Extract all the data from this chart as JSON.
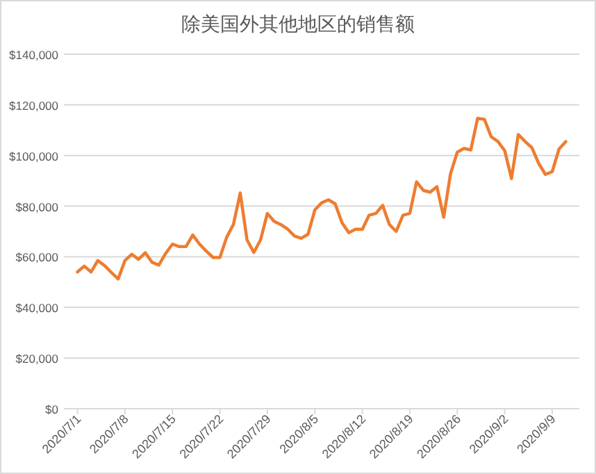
{
  "chart_data": {
    "type": "line",
    "title": "除美国外其他地区的销售额",
    "x": [
      "2020-07-01",
      "2020-07-02",
      "2020-07-03",
      "2020-07-04",
      "2020-07-05",
      "2020-07-06",
      "2020-07-07",
      "2020-07-08",
      "2020-07-09",
      "2020-07-10",
      "2020-07-11",
      "2020-07-12",
      "2020-07-13",
      "2020-07-14",
      "2020-07-15",
      "2020-07-16",
      "2020-07-17",
      "2020-07-18",
      "2020-07-19",
      "2020-07-20",
      "2020-07-21",
      "2020-07-22",
      "2020-07-23",
      "2020-07-24",
      "2020-07-25",
      "2020-07-26",
      "2020-07-27",
      "2020-07-28",
      "2020-07-29",
      "2020-07-30",
      "2020-07-31",
      "2020-08-01",
      "2020-08-02",
      "2020-08-03",
      "2020-08-04",
      "2020-08-05",
      "2020-08-06",
      "2020-08-07",
      "2020-08-08",
      "2020-08-09",
      "2020-08-10",
      "2020-08-11",
      "2020-08-12",
      "2020-08-13",
      "2020-08-14",
      "2020-08-15",
      "2020-08-16",
      "2020-08-17",
      "2020-08-18",
      "2020-08-19",
      "2020-08-20",
      "2020-08-21",
      "2020-08-22",
      "2020-08-23",
      "2020-08-24",
      "2020-08-25",
      "2020-08-26",
      "2020-08-27",
      "2020-08-28",
      "2020-08-29",
      "2020-08-30",
      "2020-08-31",
      "2020-09-01",
      "2020-09-02",
      "2020-09-03",
      "2020-09-04",
      "2020-09-05",
      "2020-09-06",
      "2020-09-07",
      "2020-09-08",
      "2020-09-09",
      "2020-09-10",
      "2020-09-11"
    ],
    "values": [
      54000,
      56300,
      54000,
      58500,
      56500,
      53800,
      51200,
      58500,
      61000,
      59000,
      61600,
      57800,
      56700,
      61300,
      65000,
      64000,
      64000,
      68600,
      65000,
      62200,
      59700,
      59700,
      67700,
      72800,
      85200,
      66700,
      61700,
      66700,
      77100,
      74000,
      72700,
      70900,
      68200,
      67300,
      68900,
      78500,
      81300,
      82500,
      80900,
      73500,
      69500,
      70900,
      70800,
      76400,
      77100,
      80300,
      72700,
      70000,
      76400,
      77100,
      89600,
      86200,
      85500,
      87700,
      75600,
      92700,
      101300,
      102800,
      102200,
      114700,
      114300,
      107400,
      105500,
      101900,
      90900,
      108300,
      105500,
      103100,
      96900,
      92500,
      93600,
      102500,
      105500
    ],
    "color": "#ed7d31",
    "line_style": "solid",
    "grid": "y",
    "ylim": [
      0,
      140000
    ],
    "yticks": [
      {
        "value": 0,
        "label": "$0"
      },
      {
        "value": 20000,
        "label": "$20,000"
      },
      {
        "value": 40000,
        "label": "$40,000"
      },
      {
        "value": 60000,
        "label": "$60,000"
      },
      {
        "value": 80000,
        "label": "$80,000"
      },
      {
        "value": 100000,
        "label": "$100,000"
      },
      {
        "value": 120000,
        "label": "$120,000"
      },
      {
        "value": 140000,
        "label": "$140,000"
      }
    ],
    "xlim": [
      "2020-06-29",
      "2020-09-13"
    ],
    "xticks": [
      {
        "value": "2020-07-01",
        "label": "2020/7/1"
      },
      {
        "value": "2020-07-08",
        "label": "2020/7/8"
      },
      {
        "value": "2020-07-15",
        "label": "2020/7/15"
      },
      {
        "value": "2020-07-22",
        "label": "2020/7/22"
      },
      {
        "value": "2020-07-29",
        "label": "2020/7/29"
      },
      {
        "value": "2020-08-05",
        "label": "2020/8/5"
      },
      {
        "value": "2020-08-12",
        "label": "2020/8/12"
      },
      {
        "value": "2020-08-19",
        "label": "2020/8/19"
      },
      {
        "value": "2020-08-26",
        "label": "2020/8/26"
      },
      {
        "value": "2020-09-02",
        "label": "2020/9/2"
      },
      {
        "value": "2020-09-09",
        "label": "2020/9/9"
      }
    ]
  }
}
